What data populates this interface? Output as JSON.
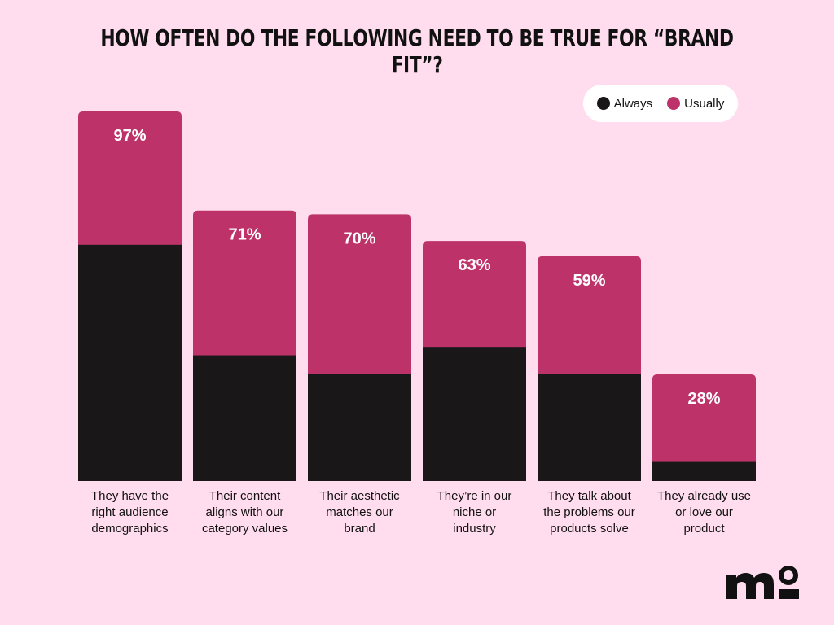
{
  "chart_data": {
    "type": "bar",
    "stacked": true,
    "title": "HOW OFTEN DO THE FOLLOWING NEED TO BE TRUE FOR “BRAND FIT”?",
    "categories": [
      "They have the right audience demographics",
      "Their content aligns with our category values",
      "Their aesthetic matches our brand",
      "They’re in our niche or industry",
      "They talk about the problems our products solve",
      "They already use or love our product"
    ],
    "category_lines": [
      [
        "They have the",
        "right audience",
        "demographics"
      ],
      [
        "Their content",
        "aligns with our",
        "category values"
      ],
      [
        "Their aesthetic",
        "matches our",
        "brand"
      ],
      [
        "They’re in our",
        "niche or",
        "industry"
      ],
      [
        "They talk about",
        "the problems our",
        "products solve"
      ],
      [
        "They already use",
        "or love our",
        "product"
      ]
    ],
    "series": [
      {
        "name": "Always",
        "color": "#1A1719",
        "values": [
          62,
          33,
          28,
          35,
          28,
          5
        ]
      },
      {
        "name": "Usually",
        "color": "#BD3369",
        "values": [
          35,
          38,
          42,
          28,
          31,
          23
        ]
      }
    ],
    "totals": [
      97,
      71,
      70,
      63,
      59,
      28
    ],
    "total_labels": [
      "97%",
      "71%",
      "70%",
      "63%",
      "59%",
      "28%"
    ],
    "ylim": [
      0,
      100
    ],
    "grid": false,
    "legend_position": "top-right"
  },
  "logo": {
    "text": "mo"
  }
}
